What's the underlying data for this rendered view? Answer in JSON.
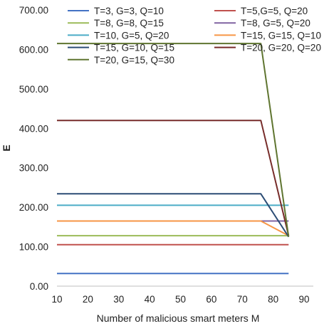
{
  "chart_data": {
    "type": "line",
    "title": "",
    "xlabel": "Number of malicious smart meters M",
    "ylabel": "E",
    "xlim": [
      10,
      90
    ],
    "ylim": [
      0,
      700
    ],
    "x_ticks": [
      "10",
      "20",
      "30",
      "40",
      "50",
      "60",
      "70",
      "80",
      "90"
    ],
    "y_ticks": [
      "0.00",
      "100.00",
      "200.00",
      "300.00",
      "400.00",
      "500.00",
      "600.00",
      "700.00"
    ],
    "grid": false,
    "legend_position": "top",
    "series": [
      {
        "name": "T=3, G=3, Q=10",
        "color": "#4472C4",
        "x": [
          10,
          76,
          85
        ],
        "y": [
          32,
          32,
          32
        ]
      },
      {
        "name": "T=5,G=5, Q=20",
        "color": "#C0504D",
        "x": [
          10,
          76,
          85
        ],
        "y": [
          105,
          105,
          105
        ]
      },
      {
        "name": "T=8, G=8, Q=15",
        "color": "#9BBB59",
        "x": [
          10,
          76,
          85
        ],
        "y": [
          128,
          128,
          128
        ]
      },
      {
        "name": "T=8, G=5, Q=20",
        "color": "#8064A2",
        "x": [
          10,
          76,
          85
        ],
        "y": [
          165,
          165,
          165
        ]
      },
      {
        "name": "T=10, G=5, Q=20",
        "color": "#4BACC6",
        "x": [
          10,
          76,
          85
        ],
        "y": [
          205,
          205,
          205
        ]
      },
      {
        "name": "T=15, G=15, Q=10",
        "color": "#F79646",
        "x": [
          10,
          76,
          85
        ],
        "y": [
          165,
          165,
          128
        ]
      },
      {
        "name": "T=15, G=10, Q=15",
        "color": "#2C4D75",
        "x": [
          10,
          76,
          85
        ],
        "y": [
          234,
          234,
          125
        ]
      },
      {
        "name": "T=20, G=20, Q=20",
        "color": "#772C2A",
        "x": [
          10,
          76,
          85
        ],
        "y": [
          420,
          420,
          128
        ]
      },
      {
        "name": "T=20, G=15, Q=30",
        "color": "#5F7530",
        "x": [
          10,
          76,
          85
        ],
        "y": [
          615,
          615,
          125
        ]
      }
    ]
  }
}
